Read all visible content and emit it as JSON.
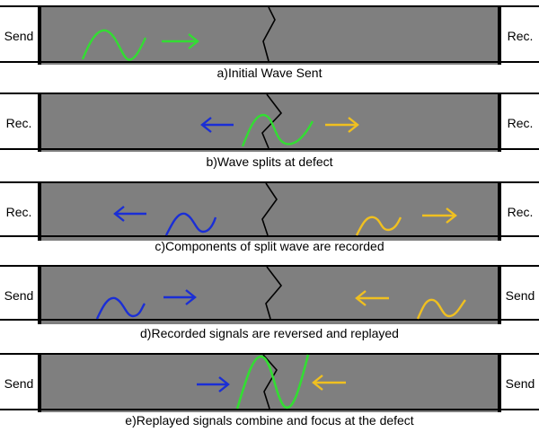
{
  "panels": [
    {
      "left_label": "Send",
      "right_label": "Rec.",
      "caption": "a)Initial Wave Sent",
      "waves": [
        {
          "color": "#33dd33"
        }
      ],
      "arrows": [
        {
          "direction": "right",
          "color": "#33dd33"
        }
      ]
    },
    {
      "left_label": "Rec.",
      "right_label": "Rec.",
      "caption": "b)Wave splits at defect",
      "waves": [
        {
          "color": "#33dd33"
        }
      ],
      "arrows": [
        {
          "direction": "left",
          "color": "#1a2ed6"
        },
        {
          "direction": "right",
          "color": "#f0c020"
        }
      ]
    },
    {
      "left_label": "Rec.",
      "right_label": "Rec.",
      "caption": "c)Components of split wave are recorded",
      "waves": [
        {
          "color": "#1a2ed6"
        },
        {
          "color": "#f0c020"
        }
      ],
      "arrows": [
        {
          "direction": "left",
          "color": "#1a2ed6"
        },
        {
          "direction": "right",
          "color": "#f0c020"
        }
      ]
    },
    {
      "left_label": "Send",
      "right_label": "Send",
      "caption": "d)Recorded signals are reversed and replayed",
      "waves": [
        {
          "color": "#1a2ed6"
        },
        {
          "color": "#f0c020"
        }
      ],
      "arrows": [
        {
          "direction": "right",
          "color": "#1a2ed6"
        },
        {
          "direction": "left",
          "color": "#f0c020"
        }
      ]
    },
    {
      "left_label": "Send",
      "right_label": "Send",
      "caption": "e)Replayed signals combine and focus at the defect",
      "waves": [
        {
          "color": "#33dd33"
        }
      ],
      "arrows": [
        {
          "direction": "right",
          "color": "#1a2ed6"
        },
        {
          "direction": "left",
          "color": "#f0c020"
        }
      ]
    }
  ],
  "colors": {
    "bar": "#7f7f7f",
    "crack": "#000000"
  }
}
